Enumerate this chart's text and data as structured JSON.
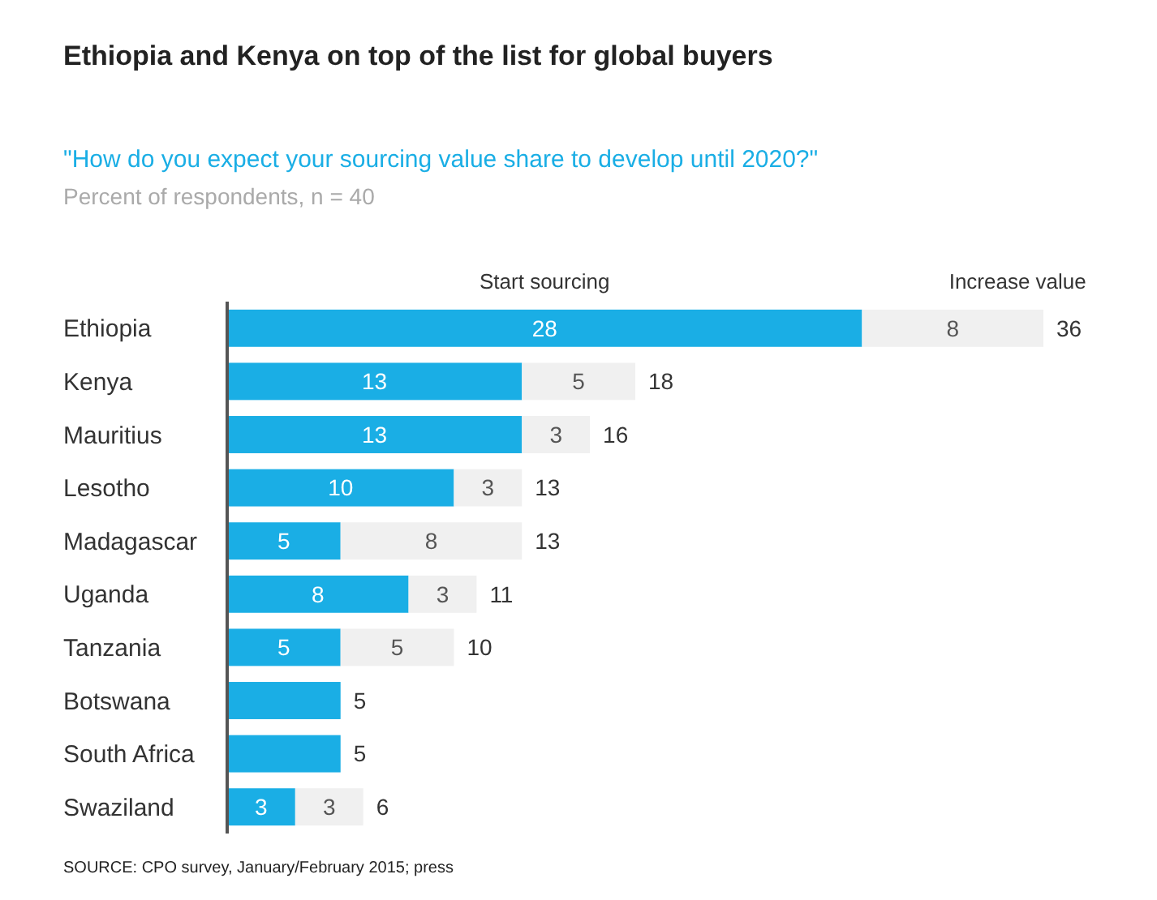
{
  "chart_data": {
    "type": "bar",
    "orientation": "horizontal",
    "stacked": true,
    "title": "Ethiopia and Kenya on top of the list for global buyers",
    "subtitle": "\"How do you expect your sourcing value share to develop until 2020?\"",
    "annotations": [
      "Percent of respondents, n = 40",
      "SOURCE: CPO survey, January/February 2015; press"
    ],
    "categories": [
      "Ethiopia",
      "Kenya",
      "Mauritius",
      "Lesotho",
      "Madagascar",
      "Uganda",
      "Tanzania",
      "Botswana",
      "South Africa",
      "Swaziland"
    ],
    "series": [
      {
        "name": "Start sourcing",
        "color": "#1aaee5",
        "values": [
          28,
          13,
          13,
          10,
          5,
          8,
          5,
          5,
          5,
          3
        ],
        "value_labels": [
          "28",
          "13",
          "13",
          "10",
          "5",
          "8",
          "5",
          null,
          null,
          "3"
        ]
      },
      {
        "name": "Increase value",
        "color": "#f0f0f0",
        "values": [
          8,
          5,
          3,
          3,
          8,
          3,
          5,
          null,
          null,
          3
        ],
        "value_labels": [
          "8",
          "5",
          "3",
          "3",
          "8",
          "3",
          "5",
          null,
          null,
          "3"
        ]
      }
    ],
    "totals": [
      "36",
      "18",
      "16",
      "13",
      "13",
      "11",
      "10",
      "5",
      "5",
      "6"
    ],
    "legend": "top"
  }
}
